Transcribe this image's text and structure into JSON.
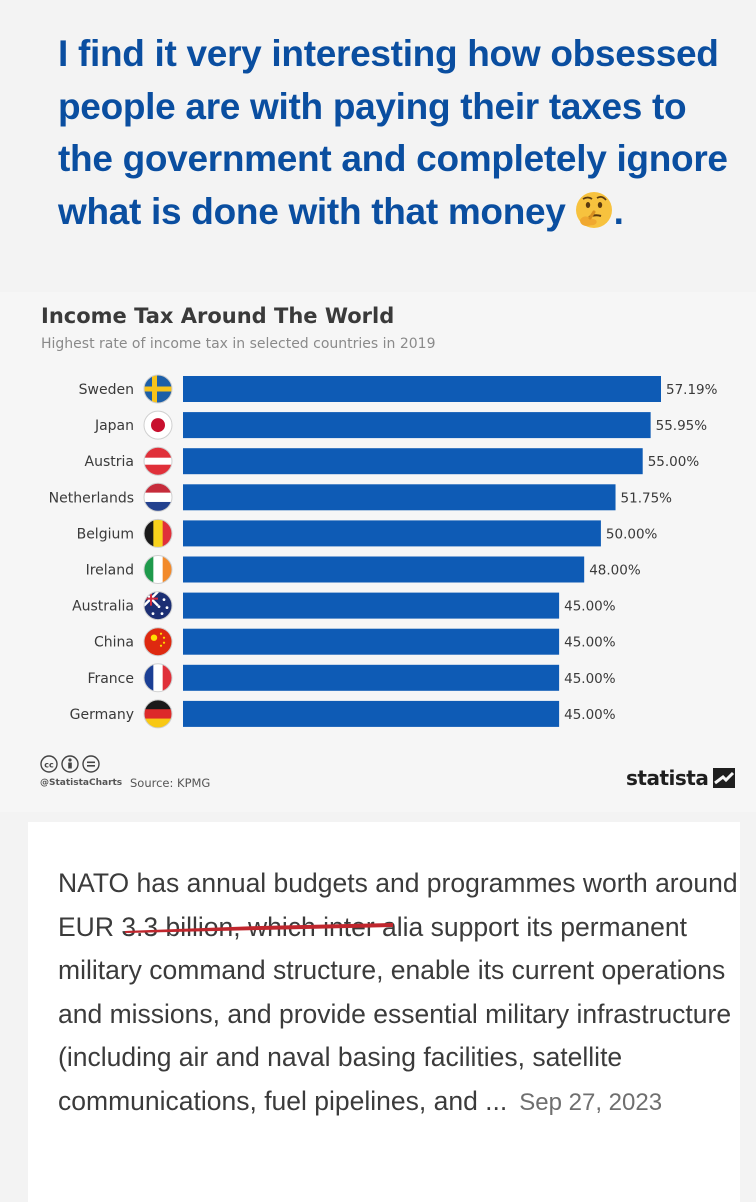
{
  "headline": {
    "text": "I find it very interesting how obsessed people are with paying their taxes to the government and completely ignore what is done with that money",
    "trailing_punct": ".",
    "emoji": "thinking-face-icon"
  },
  "chart_data": {
    "type": "bar",
    "orientation": "horizontal",
    "title": "Income Tax Around The World",
    "subtitle": "Highest rate of income tax in selected countries in 2019",
    "categories": [
      "Sweden",
      "Japan",
      "Austria",
      "Netherlands",
      "Belgium",
      "Ireland",
      "Australia",
      "China",
      "France",
      "Germany"
    ],
    "values": [
      57.19,
      55.95,
      55.0,
      51.75,
      50.0,
      48.0,
      45.0,
      45.0,
      45.0,
      45.0
    ],
    "value_labels": [
      "57.19%",
      "55.95%",
      "55.00%",
      "51.75%",
      "50.00%",
      "48.00%",
      "45.00%",
      "45.00%",
      "45.00%",
      "45.00%"
    ],
    "flag_icons": [
      "flag-sweden-icon",
      "flag-japan-icon",
      "flag-austria-icon",
      "flag-netherlands-icon",
      "flag-belgium-icon",
      "flag-ireland-icon",
      "flag-australia-icon",
      "flag-china-icon",
      "flag-france-icon",
      "flag-germany-icon"
    ],
    "bar_color": "#0e5bb5",
    "xlim": [
      0,
      57.19
    ],
    "grid": false,
    "legend": "none"
  },
  "footer": {
    "handle": "@StatistaCharts",
    "source": "Source: KPMG",
    "brand": "statista"
  },
  "snippet": {
    "text": "NATO has annual budgets and programmes worth around EUR 3.3 billion, which inter alia support its permanent military command structure, enable its current operations and missions, and provide essential military infrastructure (including air and naval basing facilities, satellite communications, fuel pipelines, and ...",
    "date": "Sep 27, 2023"
  },
  "colors": {
    "headline": "#0a4ea0",
    "bar": "#0e5bb5",
    "underline": "#c0262d"
  }
}
